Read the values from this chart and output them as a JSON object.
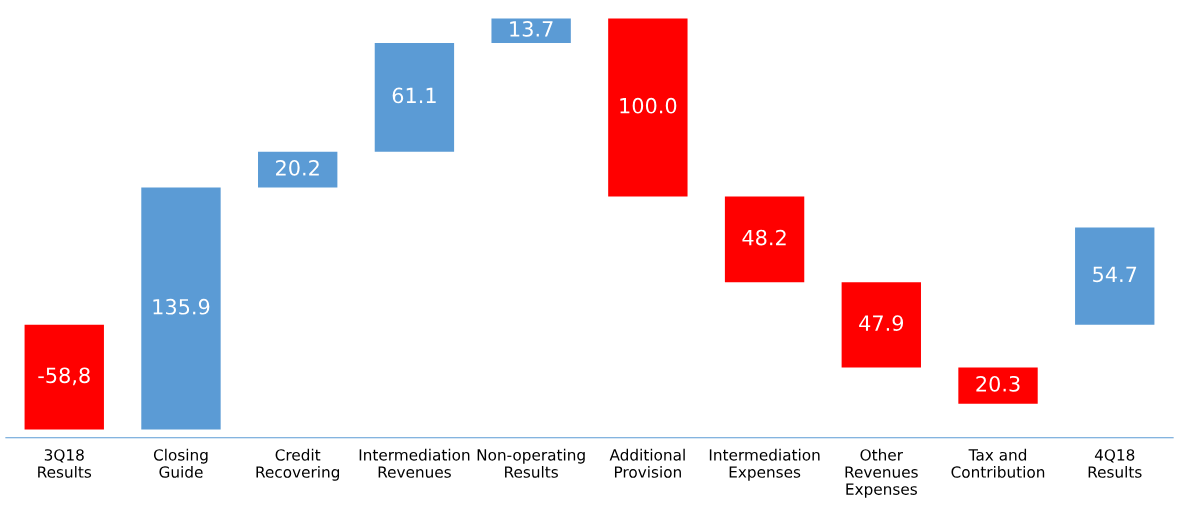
{
  "chart_data": {
    "type": "other",
    "categories": [
      "3Q18\nResults",
      "Closing\nGuide",
      "Credit\nRecovering",
      "Intermediation\nRevenues",
      "Non-operating\nResults",
      "Additional\nProvision",
      "Intermediation\nExpenses",
      "Other\nRevenues\nExpenses",
      "Tax and\nContribution",
      "4Q18\nResults"
    ],
    "values": [
      -58.8,
      135.9,
      20.2,
      61.1,
      13.7,
      100.0,
      48.2,
      47.9,
      20.3,
      54.7
    ],
    "colors": [
      "#ff0000",
      "#5b9bd5",
      "#5b9bd5",
      "#5b9bd5",
      "#5b9bd5",
      "#ff0000",
      "#ff0000",
      "#ff0000",
      "#ff0000",
      "#5b9bd5"
    ],
    "value_labels": [
      "-58,8",
      "135.9",
      "20.2",
      "61.1",
      "13.7",
      "100.0",
      "48.2",
      "47.9",
      "20.3",
      "54.7"
    ]
  }
}
